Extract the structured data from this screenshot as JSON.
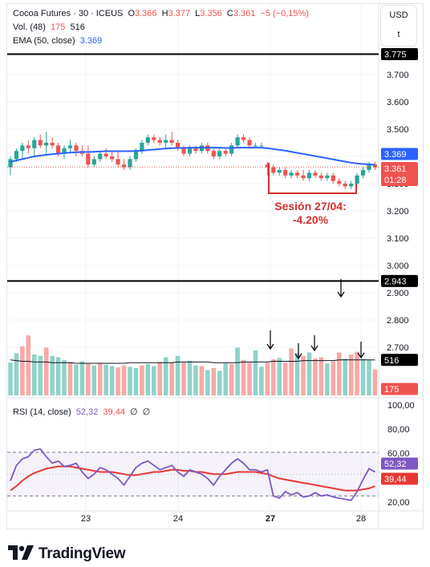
{
  "header": {
    "symbol": "Cocoa Futures",
    "sep1": "·",
    "interval": "30",
    "sep2": "·",
    "exchange": "ICEUS",
    "o_label": "O",
    "o_value": "3.366",
    "h_label": "H",
    "h_value": "3.377",
    "l_label": "L",
    "l_value": "3.356",
    "c_label": "C",
    "c_value": "3.361",
    "change": "−5 (−0,15%)"
  },
  "volume_legend": {
    "label": "Vol. (48)",
    "value1": "175",
    "value2": "516"
  },
  "ema_legend": {
    "label": "EMA (50, close)",
    "value": "3.369"
  },
  "rsi_legend": {
    "label": "RSI (14, close)",
    "rsi": "52,32",
    "ma": "39,44",
    "x1": "∅",
    "x2": "∅"
  },
  "currency": {
    "code": "USD",
    "toggle": "t"
  },
  "brand": {
    "name": "TradingView",
    "logo_icon": "tradingview-logo-icon"
  },
  "annotation": {
    "line1": "Sesión 27/04:",
    "line2": "-4.20%",
    "color": "#d32f2f"
  },
  "colors": {
    "up": "#26a69a",
    "down": "#ef5350",
    "ema": "#2962ff",
    "rsi": "#7e57c2",
    "rsi_ma": "#e53935",
    "vol_ma": "#131722"
  },
  "price_axis": {
    "ticks": [
      "3.700",
      "3.600",
      "3.500",
      "3.300",
      "3.200",
      "3.100",
      "3.000",
      "2.900",
      "2.800",
      "2.700"
    ],
    "badge_top": "3.775",
    "badge_ema": "3.369",
    "badge_last": "3.361",
    "badge_countdown": "01:28",
    "badge_line": "2.943",
    "badge_vol_ma": "516",
    "badge_vol": "175"
  },
  "rsi_axis": {
    "ticks": [
      "100,00",
      "80,00",
      "60,00",
      "20,00"
    ],
    "badge_rsi": "52,32",
    "badge_ma": "39,44"
  },
  "time_axis": {
    "ticks": [
      "23",
      "24",
      "27",
      "28"
    ]
  },
  "chart_data": [
    {
      "type": "candlestick",
      "title": "Cocoa Futures · 30 · ICEUS",
      "x_ticks": [
        "23",
        "24",
        "27",
        "28"
      ],
      "hlines": [
        3.775,
        2.943
      ],
      "candles": [
        [
          3.36,
          3.4,
          3.33,
          3.39
        ],
        [
          3.39,
          3.43,
          3.38,
          3.42
        ],
        [
          3.42,
          3.45,
          3.39,
          3.44
        ],
        [
          3.44,
          3.46,
          3.41,
          3.43
        ],
        [
          3.43,
          3.47,
          3.4,
          3.46
        ],
        [
          3.46,
          3.48,
          3.43,
          3.44
        ],
        [
          3.44,
          3.49,
          3.41,
          3.45
        ],
        [
          3.45,
          3.47,
          3.43,
          3.44
        ],
        [
          3.44,
          3.45,
          3.4,
          3.41
        ],
        [
          3.41,
          3.44,
          3.39,
          3.43
        ],
        [
          3.43,
          3.46,
          3.41,
          3.44
        ],
        [
          3.44,
          3.45,
          3.4,
          3.42
        ],
        [
          3.42,
          3.44,
          3.4,
          3.41
        ],
        [
          3.41,
          3.44,
          3.36,
          3.37
        ],
        [
          3.37,
          3.4,
          3.36,
          3.39
        ],
        [
          3.39,
          3.42,
          3.38,
          3.41
        ],
        [
          3.41,
          3.43,
          3.39,
          3.4
        ],
        [
          3.4,
          3.42,
          3.38,
          3.39
        ],
        [
          3.39,
          3.42,
          3.36,
          3.37
        ],
        [
          3.37,
          3.39,
          3.35,
          3.36
        ],
        [
          3.36,
          3.4,
          3.35,
          3.39
        ],
        [
          3.39,
          3.43,
          3.38,
          3.42
        ],
        [
          3.42,
          3.46,
          3.41,
          3.45
        ],
        [
          3.45,
          3.48,
          3.44,
          3.47
        ],
        [
          3.47,
          3.48,
          3.45,
          3.46
        ],
        [
          3.46,
          3.47,
          3.44,
          3.45
        ],
        [
          3.45,
          3.48,
          3.43,
          3.46
        ],
        [
          3.46,
          3.49,
          3.44,
          3.45
        ],
        [
          3.45,
          3.46,
          3.42,
          3.43
        ],
        [
          3.43,
          3.44,
          3.4,
          3.41
        ],
        [
          3.41,
          3.44,
          3.4,
          3.43
        ],
        [
          3.43,
          3.44,
          3.41,
          3.42
        ],
        [
          3.42,
          3.45,
          3.41,
          3.44
        ],
        [
          3.44,
          3.45,
          3.41,
          3.42
        ],
        [
          3.42,
          3.43,
          3.39,
          3.4
        ],
        [
          3.4,
          3.43,
          3.39,
          3.42
        ],
        [
          3.42,
          3.43,
          3.4,
          3.41
        ],
        [
          3.41,
          3.45,
          3.4,
          3.44
        ],
        [
          3.44,
          3.48,
          3.43,
          3.47
        ],
        [
          3.47,
          3.48,
          3.45,
          3.46
        ],
        [
          3.46,
          3.47,
          3.43,
          3.44
        ],
        [
          3.44,
          3.45,
          3.43,
          3.44
        ],
        [
          3.44,
          3.45,
          3.43,
          3.44
        ],
        [
          3.37,
          3.38,
          3.33,
          3.36
        ],
        [
          3.36,
          3.37,
          3.33,
          3.34
        ],
        [
          3.34,
          3.36,
          3.33,
          3.35
        ],
        [
          3.35,
          3.36,
          3.32,
          3.33
        ],
        [
          3.33,
          3.35,
          3.32,
          3.34
        ],
        [
          3.34,
          3.35,
          3.32,
          3.33
        ],
        [
          3.33,
          3.35,
          3.31,
          3.32
        ],
        [
          3.32,
          3.35,
          3.31,
          3.34
        ],
        [
          3.34,
          3.35,
          3.32,
          3.33
        ],
        [
          3.33,
          3.34,
          3.31,
          3.32
        ],
        [
          3.32,
          3.34,
          3.31,
          3.33
        ],
        [
          3.33,
          3.34,
          3.3,
          3.31
        ],
        [
          3.31,
          3.32,
          3.29,
          3.3
        ],
        [
          3.3,
          3.31,
          3.28,
          3.29
        ],
        [
          3.29,
          3.31,
          3.28,
          3.3
        ],
        [
          3.3,
          3.34,
          3.3,
          3.33
        ],
        [
          3.33,
          3.36,
          3.32,
          3.35
        ],
        [
          3.35,
          3.38,
          3.34,
          3.37
        ],
        [
          3.37,
          3.38,
          3.35,
          3.36
        ]
      ],
      "ema": [
        3.38,
        3.385,
        3.39,
        3.395,
        3.4,
        3.403,
        3.406,
        3.408,
        3.41,
        3.412,
        3.414,
        3.415,
        3.416,
        3.416,
        3.417,
        3.418,
        3.419,
        3.419,
        3.419,
        3.419,
        3.419,
        3.42,
        3.421,
        3.423,
        3.425,
        3.427,
        3.429,
        3.43,
        3.431,
        3.431,
        3.432,
        3.432,
        3.432,
        3.432,
        3.432,
        3.432,
        3.431,
        3.431,
        3.432,
        3.432,
        3.432,
        3.432,
        3.432,
        3.43,
        3.427,
        3.424,
        3.421,
        3.417,
        3.413,
        3.409,
        3.405,
        3.401,
        3.397,
        3.393,
        3.389,
        3.385,
        3.381,
        3.377,
        3.374,
        3.372,
        3.371,
        3.369
      ]
    },
    {
      "type": "bar",
      "title": "Vol. (48)",
      "values": [
        48,
        62,
        72,
        88,
        60,
        58,
        70,
        58,
        56,
        52,
        49,
        45,
        50,
        47,
        44,
        47,
        45,
        43,
        41,
        44,
        42,
        40,
        44,
        46,
        43,
        49,
        56,
        48,
        58,
        48,
        51,
        44,
        43,
        37,
        40,
        36,
        47,
        46,
        70,
        52,
        48,
        66,
        42,
        48,
        53,
        55,
        48,
        69,
        62,
        58,
        63,
        54,
        56,
        47,
        50,
        63,
        54,
        60,
        64,
        54,
        52,
        38
      ],
      "down": [
        false,
        false,
        true,
        true,
        false,
        false,
        true,
        false,
        false,
        false,
        true,
        false,
        false,
        true,
        false,
        true,
        false,
        false,
        true,
        true,
        false,
        false,
        true,
        false,
        false,
        true,
        false,
        true,
        false,
        true,
        false,
        false,
        true,
        false,
        true,
        false,
        false,
        true,
        false,
        true,
        true,
        false,
        false,
        true,
        true,
        false,
        true,
        true,
        false,
        true,
        false,
        true,
        true,
        false,
        true,
        true,
        false,
        true,
        true,
        false,
        false,
        true
      ],
      "ma": [
        52,
        51,
        50,
        50,
        49,
        49,
        49,
        48,
        48,
        48,
        48,
        47,
        47,
        47,
        47,
        47,
        47,
        47,
        47,
        47,
        48,
        48,
        48,
        48,
        48,
        48,
        48,
        48,
        49,
        49,
        49,
        49,
        49,
        49,
        48,
        48,
        48,
        48,
        48,
        49,
        49,
        49,
        49,
        49,
        50,
        50,
        50,
        50,
        50,
        51,
        51,
        51,
        51,
        51,
        51,
        52,
        52,
        52,
        52,
        52,
        52,
        52
      ]
    },
    {
      "type": "line",
      "title": "RSI (14, close)",
      "ylim": [
        0,
        100
      ],
      "levels": [
        70,
        30
      ],
      "series": [
        {
          "name": "RSI",
          "values": [
            44,
            58,
            64,
            66,
            72,
            73,
            66,
            60,
            62,
            57,
            58,
            60,
            52,
            46,
            50,
            56,
            54,
            50,
            46,
            40,
            48,
            56,
            60,
            62,
            58,
            54,
            56,
            58,
            52,
            48,
            54,
            52,
            50,
            46,
            40,
            48,
            54,
            60,
            64,
            60,
            54,
            54,
            52,
            54,
            30,
            28,
            34,
            31,
            33,
            29,
            30,
            33,
            30,
            31,
            29,
            28,
            27,
            26,
            34,
            45,
            55,
            52
          ]
        },
        {
          "name": "MA",
          "values": [
            35,
            39,
            44,
            48,
            51,
            53,
            55,
            56,
            57,
            57,
            57,
            56,
            55,
            54,
            53,
            52,
            52,
            52,
            51,
            50,
            49,
            49,
            50,
            51,
            52,
            52,
            53,
            54,
            54,
            53,
            53,
            52,
            52,
            51,
            50,
            50,
            50,
            51,
            52,
            52,
            52,
            52,
            51,
            50,
            48,
            46,
            45,
            44,
            43,
            42,
            41,
            40,
            39,
            38,
            37,
            36,
            35,
            35,
            35,
            36,
            37,
            39
          ]
        }
      ]
    }
  ]
}
